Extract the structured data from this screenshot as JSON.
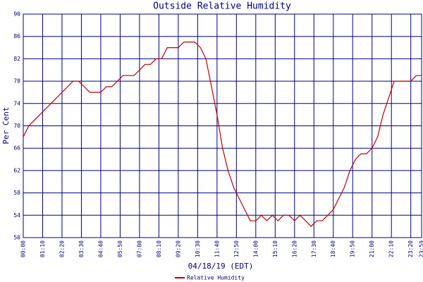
{
  "chart_data": {
    "type": "line",
    "title": "Outside Relative Humidity",
    "y_label": "Per Cent",
    "x_label": "04/18/19 (EDT)",
    "x": [
      0,
      20,
      40,
      60,
      80,
      100,
      120,
      140,
      160,
      180,
      200,
      220,
      240,
      260,
      280,
      300,
      320,
      340,
      360,
      380,
      400,
      420,
      440,
      460,
      480,
      500,
      520,
      540,
      560,
      580,
      600,
      620,
      640,
      660,
      680,
      700,
      720,
      740,
      760,
      780,
      800,
      820,
      840,
      860,
      880,
      900,
      920,
      940,
      960,
      980,
      1000,
      1020,
      1040,
      1060,
      1080,
      1100,
      1120,
      1140,
      1160,
      1180,
      1200,
      1220,
      1240,
      1260,
      1280,
      1300,
      1320,
      1340,
      1360,
      1380,
      1400,
      1420,
      1439
    ],
    "series": [
      {
        "name": "Relative Humidity",
        "color": "#c00000",
        "values": [
          68,
          70,
          71,
          72,
          73,
          74,
          75,
          76,
          77,
          78,
          78,
          77,
          76,
          76,
          76,
          77,
          77,
          78,
          79,
          79,
          79,
          80,
          81,
          81,
          82,
          82,
          84,
          84,
          84,
          85,
          85,
          85,
          84,
          82,
          77,
          72,
          66,
          62,
          59,
          57,
          55,
          53,
          53,
          54,
          53,
          54,
          53,
          54,
          54,
          53,
          54,
          53,
          52,
          53,
          53,
          54,
          55,
          57,
          59,
          62,
          64,
          65,
          65,
          66,
          68,
          72,
          75,
          78,
          78,
          78,
          78,
          79,
          79
        ]
      }
    ],
    "xlim": [
      0,
      1439
    ],
    "xticks": [
      {
        "value": 0,
        "label": "00:00"
      },
      {
        "value": 70,
        "label": "01:10"
      },
      {
        "value": 140,
        "label": "02:20"
      },
      {
        "value": 210,
        "label": "03:30"
      },
      {
        "value": 280,
        "label": "04:40"
      },
      {
        "value": 350,
        "label": "05:50"
      },
      {
        "value": 420,
        "label": "07:00"
      },
      {
        "value": 490,
        "label": "08:10"
      },
      {
        "value": 560,
        "label": "09:20"
      },
      {
        "value": 630,
        "label": "10:30"
      },
      {
        "value": 700,
        "label": "11:40"
      },
      {
        "value": 770,
        "label": "12:50"
      },
      {
        "value": 840,
        "label": "14:00"
      },
      {
        "value": 910,
        "label": "15:10"
      },
      {
        "value": 980,
        "label": "16:20"
      },
      {
        "value": 1050,
        "label": "17:30"
      },
      {
        "value": 1120,
        "label": "18:40"
      },
      {
        "value": 1190,
        "label": "19:50"
      },
      {
        "value": 1260,
        "label": "21:00"
      },
      {
        "value": 1330,
        "label": "22:10"
      },
      {
        "value": 1400,
        "label": "23:20"
      },
      {
        "value": 1439,
        "label": "23:59"
      }
    ],
    "ylim": [
      50,
      90
    ],
    "yticks": [
      50,
      54,
      58,
      62,
      66,
      70,
      74,
      78,
      82,
      86,
      90
    ],
    "grid": true,
    "legend": "bottom"
  }
}
